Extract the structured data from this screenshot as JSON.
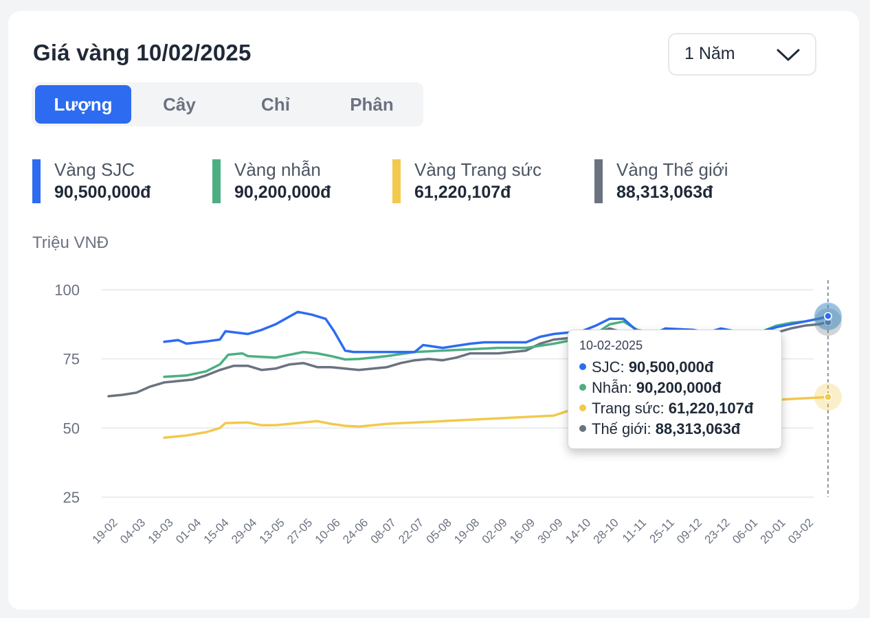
{
  "title": "Giá vàng 10/02/2025",
  "period": {
    "selected": "1 Năm"
  },
  "unit_tabs": [
    {
      "label": "Lượng",
      "active": true
    },
    {
      "label": "Cây",
      "active": false
    },
    {
      "label": "Chỉ",
      "active": false
    },
    {
      "label": "Phân",
      "active": false
    }
  ],
  "legend": [
    {
      "name": "Vàng SJC",
      "value": "90,500,000đ",
      "color": "#2d6cf0"
    },
    {
      "name": "Vàng nhẫn",
      "value": "90,200,000đ",
      "color": "#4caf82"
    },
    {
      "name": "Vàng Trang sức",
      "value": "61,220,107đ",
      "color": "#f2c94c"
    },
    {
      "name": "Vàng Thế giới",
      "value": "88,313,063đ",
      "color": "#6b7280"
    }
  ],
  "tooltip": {
    "date": "10-02-2025",
    "rows": [
      {
        "label": "SJC:",
        "value": "90,500,000đ",
        "color": "#2d6cf0"
      },
      {
        "label": "Nhẫn:",
        "value": "90,200,000đ",
        "color": "#4caf82"
      },
      {
        "label": "Trang sức:",
        "value": "61,220,107đ",
        "color": "#f2c94c"
      },
      {
        "label": "Thế giới:",
        "value": "88,313,063đ",
        "color": "#6b7280"
      }
    ]
  },
  "chart_data": {
    "type": "line",
    "ylabel": "Triệu VNĐ",
    "ylim": [
      25,
      100
    ],
    "yticks": [
      25,
      50,
      75,
      100
    ],
    "grid": true,
    "x_ticks": [
      "19-02",
      "04-03",
      "18-03",
      "01-04",
      "15-04",
      "29-04",
      "13-05",
      "27-05",
      "10-06",
      "24-06",
      "08-07",
      "22-07",
      "05-08",
      "19-08",
      "02-09",
      "16-09",
      "30-09",
      "14-10",
      "28-10",
      "11-11",
      "25-11",
      "09-12",
      "23-12",
      "06-01",
      "20-01",
      "03-02"
    ],
    "series": [
      {
        "name": "SJC",
        "color": "#2d6cf0",
        "x": [
          2.0,
          2.5,
          2.8,
          3.5,
          4.0,
          4.2,
          5.0,
          5.5,
          6.0,
          6.8,
          7.3,
          7.8,
          8.1,
          8.5,
          8.8,
          9.0,
          10.0,
          11.0,
          11.3,
          12.0,
          13.0,
          13.5,
          14.0,
          15.0,
          15.5,
          16.0,
          16.5,
          17.0,
          17.5,
          18.0,
          18.5,
          19.0,
          19.5,
          20.0,
          21.0,
          21.5,
          22.0,
          23.0,
          23.5,
          24.0,
          24.5,
          25.0,
          25.5,
          25.85
        ],
        "y": [
          81.2,
          81.8,
          80.5,
          81.3,
          82.0,
          85.0,
          84.0,
          85.5,
          87.5,
          92.0,
          91.0,
          89.5,
          85.0,
          78.0,
          77.5,
          77.5,
          77.5,
          77.5,
          80.0,
          79.0,
          80.5,
          81.0,
          81.0,
          81.0,
          83.0,
          84.0,
          84.5,
          85.0,
          87.0,
          89.5,
          89.5,
          85.0,
          83.5,
          86.0,
          85.5,
          84.5,
          86.0,
          84.0,
          85.0,
          86.5,
          87.5,
          88.5,
          89.5,
          90.5
        ]
      },
      {
        "name": "Nhẫn",
        "color": "#4caf82",
        "x": [
          2.0,
          2.8,
          3.5,
          4.0,
          4.3,
          4.8,
          5.0,
          6.0,
          6.5,
          7.0,
          7.5,
          8.0,
          8.5,
          9.0,
          10.0,
          11.0,
          12.0,
          13.0,
          14.0,
          15.0,
          16.0,
          17.0,
          17.5,
          18.0,
          18.5,
          19.0,
          19.5,
          20.0,
          20.5,
          21.0,
          21.5,
          22.0,
          22.5,
          23.0,
          23.5,
          24.0,
          24.5,
          25.0,
          25.5,
          25.85
        ],
        "y": [
          68.5,
          69.0,
          70.5,
          73.0,
          76.5,
          77.0,
          76.0,
          75.5,
          76.5,
          77.5,
          77.0,
          76.0,
          74.8,
          75.0,
          76.0,
          77.5,
          78.0,
          78.5,
          79.0,
          79.0,
          80.5,
          82.5,
          84.0,
          87.5,
          88.5,
          85.5,
          84.5,
          84.0,
          85.5,
          84.0,
          85.0,
          83.5,
          84.5,
          83.5,
          85.0,
          87.0,
          88.0,
          88.5,
          89.5,
          90.2
        ]
      },
      {
        "name": "Trang sức",
        "color": "#f2c94c",
        "x": [
          2.0,
          2.8,
          3.5,
          4.0,
          4.2,
          5.0,
          5.5,
          6.0,
          7.0,
          7.5,
          8.0,
          8.5,
          9.0,
          10.0,
          11.0,
          12.0,
          13.0,
          14.0,
          15.0,
          16.0,
          16.3,
          16.6,
          17.0,
          17.5,
          25.5,
          25.85
        ],
        "y": [
          46.5,
          47.3,
          48.5,
          50.0,
          51.8,
          52.0,
          51.0,
          51.0,
          52.0,
          52.5,
          51.5,
          50.8,
          50.5,
          51.5,
          52.0,
          52.5,
          53.0,
          53.5,
          54.0,
          54.5,
          55.5,
          56.5,
          56.5,
          56.8,
          61.0,
          61.22
        ]
      },
      {
        "name": "Thế giới",
        "color": "#6b7280",
        "x": [
          0.0,
          0.5,
          1.0,
          1.5,
          2.0,
          2.5,
          3.0,
          3.5,
          4.0,
          4.5,
          5.0,
          5.5,
          6.0,
          6.5,
          7.0,
          7.5,
          8.0,
          8.5,
          9.0,
          9.5,
          10.0,
          10.5,
          11.0,
          11.5,
          12.0,
          12.5,
          13.0,
          13.5,
          14.0,
          14.5,
          15.0,
          15.5,
          16.0,
          16.5,
          17.0,
          17.5,
          18.0,
          18.5,
          19.0,
          19.5,
          20.0,
          20.5,
          21.0,
          21.5,
          22.0,
          22.5,
          23.0,
          23.5,
          24.0,
          24.5,
          25.0,
          25.5,
          25.85
        ],
        "y": [
          61.5,
          62.0,
          62.8,
          65.0,
          66.5,
          67.0,
          67.5,
          69.0,
          71.0,
          72.5,
          72.5,
          71.0,
          71.5,
          73.0,
          73.5,
          72.0,
          72.0,
          71.5,
          71.0,
          71.5,
          72.0,
          73.5,
          74.5,
          75.0,
          74.5,
          75.5,
          77.0,
          77.0,
          77.0,
          77.5,
          78.0,
          80.5,
          82.0,
          82.5,
          83.0,
          84.0,
          86.0,
          84.5,
          82.0,
          82.5,
          81.5,
          81.0,
          82.0,
          81.0,
          81.5,
          81.0,
          82.0,
          83.5,
          84.5,
          86.0,
          87.0,
          87.5,
          88.31
        ]
      }
    ]
  }
}
